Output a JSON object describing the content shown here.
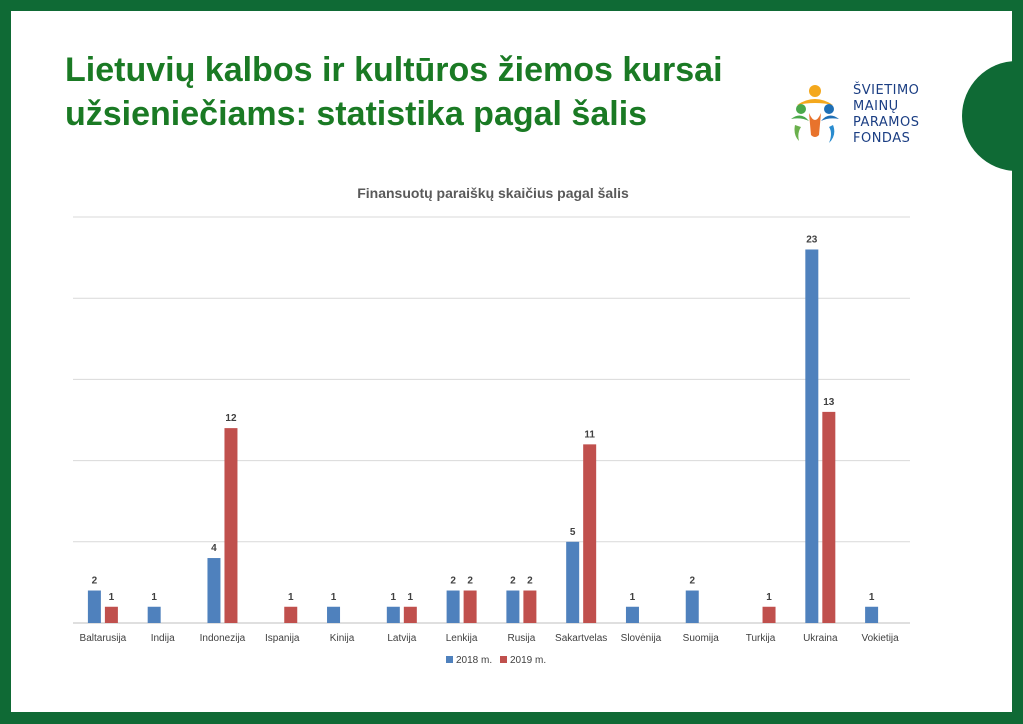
{
  "slide": {
    "title_line1": "Lietuvių kalbos ir kultūros žiemos kursai",
    "title_line2": "užsieniečiams: statistika pagal šalis"
  },
  "logo": {
    "lines": [
      "ŠVIETIMO",
      "MAINŲ",
      "PARAMOS",
      "FONDAS"
    ]
  },
  "colors": {
    "background": "#0f6a35",
    "title": "#1a7a24",
    "series_2018": "#4f81bd",
    "series_2019": "#c0504d"
  },
  "chart_data": {
    "type": "bar",
    "title": "Finansuotų paraiškų skaičius pagal šalis",
    "categories": [
      "Baltarusija",
      "Indija",
      "Indonezija",
      "Ispanija",
      "Kinija",
      "Latvija",
      "Lenkija",
      "Rusija",
      "Sakartvelas",
      "Slovėnija",
      "Suomija",
      "Turkija",
      "Ukraina",
      "Vokietija"
    ],
    "series": [
      {
        "name": "2018 m.",
        "values": [
          2,
          1,
          4,
          null,
          1,
          1,
          2,
          2,
          5,
          1,
          2,
          null,
          23,
          1
        ]
      },
      {
        "name": "2019 m.",
        "values": [
          1,
          null,
          12,
          1,
          null,
          1,
          2,
          2,
          11,
          null,
          null,
          1,
          13,
          null
        ]
      }
    ],
    "ylim": [
      0,
      25
    ],
    "grid": true,
    "legend_position": "bottom",
    "data_labels": true
  }
}
